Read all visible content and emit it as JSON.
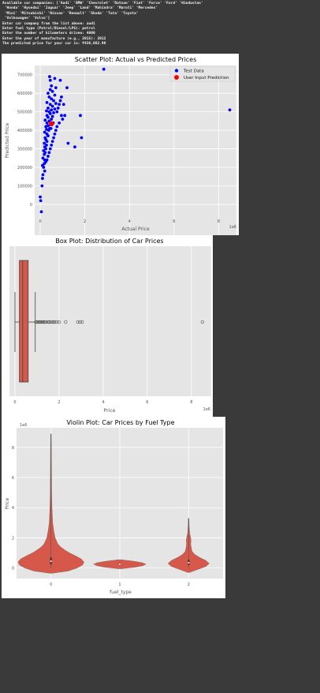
{
  "console_lines": [
    "Available car companies: ['Audi' 'BMW' 'Chevrolet' 'Datsun' 'Fiat' 'Force' 'Ford' 'Hindustan'",
    " 'Honda' 'Hyundai' 'Jaguar' 'Jeep' 'Land' 'Mahindra' 'Maruti' 'Mercedes'",
    " 'Mini' 'Mitsubishi' 'Nissan' 'Renault' 'Skoda' 'Tata' 'Toyota'",
    " 'Volkswagen' 'Volvo']",
    "Enter car company from the list above: audi",
    "Enter fuel type (Petrol/Diesel/LPG): petrol",
    "Enter the number of kilometers driven: 4000",
    "Enter the year of manufacture (e.g., 2015): 2012",
    "The predicted price for your car is: ₹436,082.99"
  ],
  "colors": {
    "plot_bg": "#e5e5e5",
    "grid": "#ffffff",
    "test_data": "#0000ff",
    "user_input": "#ff0000",
    "box_fill": "#d5584a",
    "violin_fill": "#d5584a",
    "outlier": "#555555"
  },
  "chart_data": [
    {
      "type": "scatter",
      "title": "Scatter Plot: Actual vs Predicted Prices",
      "xlabel": "Actual Price",
      "ylabel": "Predicted Price",
      "x_scale_label": "1e6",
      "xlim": [
        -0.25,
        8.8
      ],
      "ylim": [
        -60000,
        750000
      ],
      "xticks": [
        0,
        2,
        4,
        6,
        8
      ],
      "xtick_labels": [
        "0",
        "2",
        "4",
        "6",
        "8"
      ],
      "yticks": [
        0,
        100000,
        200000,
        300000,
        400000,
        500000,
        600000,
        700000
      ],
      "ytick_labels": [
        "0",
        "100000",
        "200000",
        "300000",
        "400000",
        "500000",
        "600000",
        "700000"
      ],
      "grid": true,
      "legend_position": "top-right",
      "series": [
        {
          "name": "Test Data",
          "points": [
            [
              0.0,
              40000
            ],
            [
              0.02,
              20000
            ],
            [
              0.05,
              -40000
            ],
            [
              0.08,
              100000
            ],
            [
              0.1,
              140000
            ],
            [
              0.12,
              160000
            ],
            [
              0.15,
              200000
            ],
            [
              0.1,
              210000
            ],
            [
              0.18,
              220000
            ],
            [
              0.2,
              240000
            ],
            [
              0.12,
              250000
            ],
            [
              0.18,
              270000
            ],
            [
              0.22,
              280000
            ],
            [
              0.15,
              290000
            ],
            [
              0.25,
              300000
            ],
            [
              0.2,
              310000
            ],
            [
              0.28,
              320000
            ],
            [
              0.18,
              330000
            ],
            [
              0.3,
              340000
            ],
            [
              0.25,
              350000
            ],
            [
              0.22,
              360000
            ],
            [
              0.35,
              370000
            ],
            [
              0.3,
              380000
            ],
            [
              0.2,
              390000
            ],
            [
              0.38,
              400000
            ],
            [
              0.28,
              405000
            ],
            [
              0.42,
              410000
            ],
            [
              0.25,
              420000
            ],
            [
              0.35,
              425000
            ],
            [
              0.45,
              430000
            ],
            [
              0.3,
              440000
            ],
            [
              0.4,
              450000
            ],
            [
              0.22,
              455000
            ],
            [
              0.5,
              460000
            ],
            [
              0.35,
              470000
            ],
            [
              0.55,
              475000
            ],
            [
              0.3,
              480000
            ],
            [
              0.45,
              490000
            ],
            [
              0.6,
              495000
            ],
            [
              0.4,
              500000
            ],
            [
              0.28,
              505000
            ],
            [
              0.5,
              510000
            ],
            [
              0.65,
              515000
            ],
            [
              0.35,
              520000
            ],
            [
              0.55,
              530000
            ],
            [
              0.45,
              540000
            ],
            [
              0.7,
              545000
            ],
            [
              0.3,
              550000
            ],
            [
              0.6,
              560000
            ],
            [
              0.5,
              570000
            ],
            [
              0.4,
              580000
            ],
            [
              0.65,
              590000
            ],
            [
              0.35,
              600000
            ],
            [
              0.55,
              610000
            ],
            [
              0.45,
              620000
            ],
            [
              0.7,
              630000
            ],
            [
              0.5,
              640000
            ],
            [
              0.75,
              500000
            ],
            [
              0.8,
              520000
            ],
            [
              0.85,
              540000
            ],
            [
              0.9,
              560000
            ],
            [
              0.95,
              480000
            ],
            [
              1.0,
              460000
            ],
            [
              0.85,
              440000
            ],
            [
              0.75,
              420000
            ],
            [
              0.7,
              400000
            ],
            [
              0.65,
              380000
            ],
            [
              0.6,
              360000
            ],
            [
              0.55,
              340000
            ],
            [
              0.5,
              320000
            ],
            [
              0.45,
              300000
            ],
            [
              0.4,
              280000
            ],
            [
              0.35,
              260000
            ],
            [
              0.3,
              240000
            ],
            [
              0.25,
              230000
            ],
            [
              0.2,
              180000
            ],
            [
              0.42,
              690000
            ],
            [
              0.45,
              670000
            ],
            [
              0.65,
              680000
            ],
            [
              0.9,
              670000
            ],
            [
              1.2,
              630000
            ],
            [
              0.95,
              580000
            ],
            [
              1.05,
              540000
            ],
            [
              1.1,
              480000
            ],
            [
              1.25,
              330000
            ],
            [
              1.55,
              310000
            ],
            [
              1.8,
              480000
            ],
            [
              1.85,
              360000
            ],
            [
              2.85,
              730000
            ],
            [
              8.5,
              510000
            ],
            [
              0.52,
              430000
            ],
            [
              0.48,
              410000
            ],
            [
              0.58,
              440000
            ]
          ]
        },
        {
          "name": "User Input Prediction",
          "points": [
            [
              0.5,
              436082.99
            ]
          ]
        }
      ]
    },
    {
      "type": "box",
      "title": "Box Plot: Distribution of Car Prices",
      "xlabel": "Price",
      "x_scale_label": "1e6",
      "xlim": [
        -0.25,
        8.9
      ],
      "xticks": [
        0,
        2,
        4,
        6,
        8
      ],
      "xtick_labels": [
        "0",
        "2",
        "4",
        "6",
        "8"
      ],
      "ytick_labels": [
        ""
      ],
      "grid": true,
      "whisker_low": 0.0,
      "q1": 0.2,
      "median": 0.35,
      "q3": 0.6,
      "whisker_high": 0.92,
      "outliers": [
        0.95,
        1.0,
        1.05,
        1.1,
        1.15,
        1.2,
        1.25,
        1.3,
        1.35,
        1.4,
        1.5,
        1.55,
        1.6,
        1.7,
        1.75,
        1.8,
        1.9,
        2.0,
        2.3,
        2.85,
        2.95,
        3.05,
        8.5
      ]
    },
    {
      "type": "violin",
      "title": "Violin Plot: Car Prices by Fuel Type",
      "xlabel": "fuel_type",
      "ylabel": "Price",
      "y_scale_label": "1e6",
      "ylim": [
        -0.7,
        9.3
      ],
      "yticks": [
        0,
        2,
        4,
        6,
        8
      ],
      "ytick_labels": [
        "0",
        "2",
        "4",
        "6",
        "8"
      ],
      "categories": [
        "0",
        "1",
        "2"
      ],
      "grid": true,
      "violins": [
        {
          "category": "0",
          "min": 0.0,
          "q1": 0.25,
          "median": 0.45,
          "q3": 0.7,
          "max": 8.9,
          "profile": [
            [
              -0.35,
              0.01
            ],
            [
              -0.2,
              0.25
            ],
            [
              0.0,
              0.38
            ],
            [
              0.2,
              0.46
            ],
            [
              0.4,
              0.48
            ],
            [
              0.6,
              0.44
            ],
            [
              0.8,
              0.36
            ],
            [
              1.0,
              0.27
            ],
            [
              1.2,
              0.2
            ],
            [
              1.4,
              0.14
            ],
            [
              1.6,
              0.1
            ],
            [
              2.0,
              0.06
            ],
            [
              2.5,
              0.04
            ],
            [
              3.0,
              0.025
            ],
            [
              4.0,
              0.015
            ],
            [
              5.0,
              0.01
            ],
            [
              6.5,
              0.008
            ],
            [
              8.0,
              0.006
            ],
            [
              8.9,
              0.004
            ]
          ]
        },
        {
          "category": "1",
          "min": 0.15,
          "q1": 0.2,
          "median": 0.25,
          "q3": 0.3,
          "max": 0.4,
          "profile": [
            [
              -0.05,
              0.02
            ],
            [
              0.05,
              0.22
            ],
            [
              0.15,
              0.33
            ],
            [
              0.25,
              0.38
            ],
            [
              0.35,
              0.33
            ],
            [
              0.45,
              0.2
            ],
            [
              0.55,
              0.02
            ]
          ]
        },
        {
          "category": "2",
          "min": 0.0,
          "q1": 0.2,
          "median": 0.35,
          "q3": 0.55,
          "max": 3.3,
          "profile": [
            [
              -0.3,
              0.01
            ],
            [
              -0.1,
              0.13
            ],
            [
              0.1,
              0.25
            ],
            [
              0.3,
              0.3
            ],
            [
              0.5,
              0.25
            ],
            [
              0.7,
              0.16
            ],
            [
              0.9,
              0.09
            ],
            [
              1.1,
              0.05
            ],
            [
              1.3,
              0.04
            ],
            [
              1.6,
              0.03
            ],
            [
              1.8,
              0.035
            ],
            [
              2.0,
              0.03
            ],
            [
              2.3,
              0.015
            ],
            [
              2.8,
              0.008
            ],
            [
              3.3,
              0.004
            ]
          ]
        }
      ]
    }
  ]
}
